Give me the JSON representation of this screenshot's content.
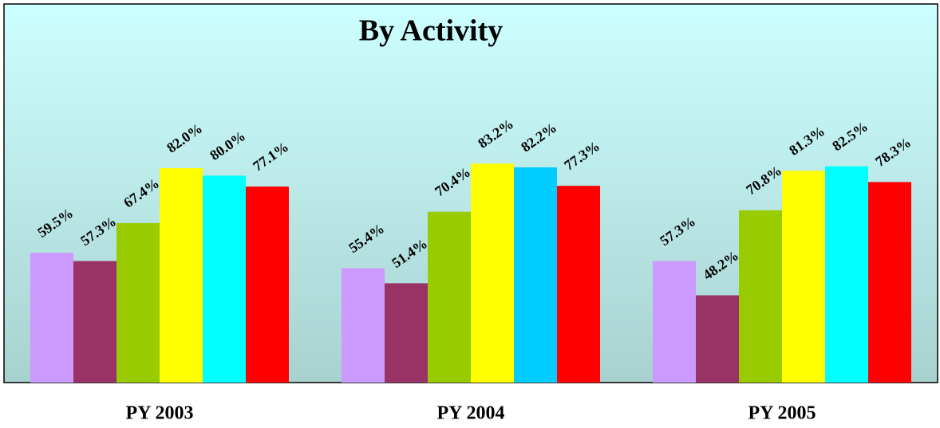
{
  "chart_data": {
    "type": "bar",
    "title": "By Activity",
    "categories": [
      "PY 2003",
      "PY 2004",
      "PY 2005"
    ],
    "series": [
      {
        "color": "#cc99ff",
        "values": [
          59.5,
          55.4,
          57.3
        ],
        "value_labels": [
          "59.5%",
          "55.4%",
          "57.3%"
        ]
      },
      {
        "color": "#993366",
        "values": [
          57.3,
          51.4,
          48.2
        ],
        "value_labels": [
          "57.3%",
          "51.4%",
          "48.2%"
        ]
      },
      {
        "color": "#99cc00",
        "values": [
          67.4,
          70.4,
          70.8
        ],
        "value_labels": [
          "67.4%",
          "70.4%",
          "70.8%"
        ]
      },
      {
        "color": "#ffff00",
        "values": [
          82.0,
          83.2,
          81.3
        ],
        "value_labels": [
          "82.0%",
          "83.2%",
          "81.3%"
        ]
      },
      {
        "color": [
          "#00ffff",
          "#00ccff",
          "#00ffff"
        ],
        "values": [
          80.0,
          82.2,
          82.5
        ],
        "value_labels": [
          "80.0%",
          "82.2%",
          "82.5%"
        ]
      },
      {
        "color": "#ff0000",
        "values": [
          77.1,
          77.3,
          78.3
        ],
        "value_labels": [
          "77.1%",
          "77.3%",
          "78.3%"
        ]
      }
    ],
    "ylim": [
      25,
      125
    ]
  }
}
